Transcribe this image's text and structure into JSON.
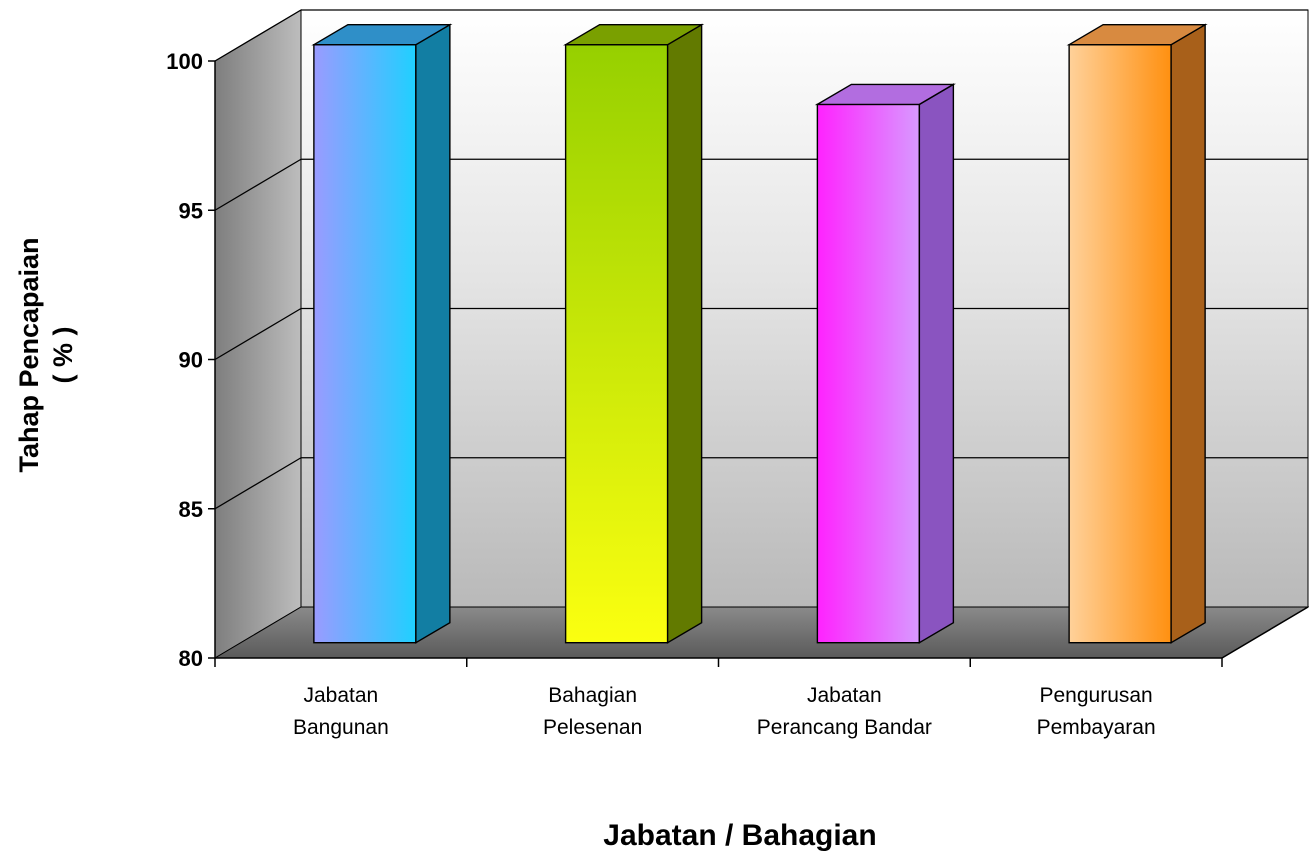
{
  "chart_data": {
    "type": "bar",
    "categories": [
      [
        "Jabatan",
        "Bangunan"
      ],
      [
        "Bahagian",
        "Pelesenan"
      ],
      [
        "Jabatan",
        "Perancang Bandar"
      ],
      [
        "Pengurusan",
        "Pembayaran"
      ]
    ],
    "values": [
      100,
      100,
      98,
      100
    ],
    "title": "",
    "xlabel": "Jabatan / Bahagian",
    "ylabel": [
      "Tahap Pencapaian",
      "( % )"
    ],
    "ylim": [
      80,
      100
    ],
    "yticks": [
      80,
      85,
      90,
      95,
      100
    ],
    "grid": true,
    "legend": "none",
    "three_d": true,
    "colors": [
      {
        "light": "#9a9bff",
        "mid": "#1fd0ff",
        "side": "#127ea3",
        "top": "#2f8fc8"
      },
      {
        "light": "#fbff10",
        "mid": "#96d000",
        "side": "#627a00",
        "top": "#7aa000"
      },
      {
        "light": "#ff22ff",
        "mid": "#d89aff",
        "side": "#8a54c0",
        "top": "#b26de0"
      },
      {
        "light": "#ffd19a",
        "mid": "#ff9010",
        "side": "#a8601a",
        "top": "#d88a40"
      }
    ]
  }
}
